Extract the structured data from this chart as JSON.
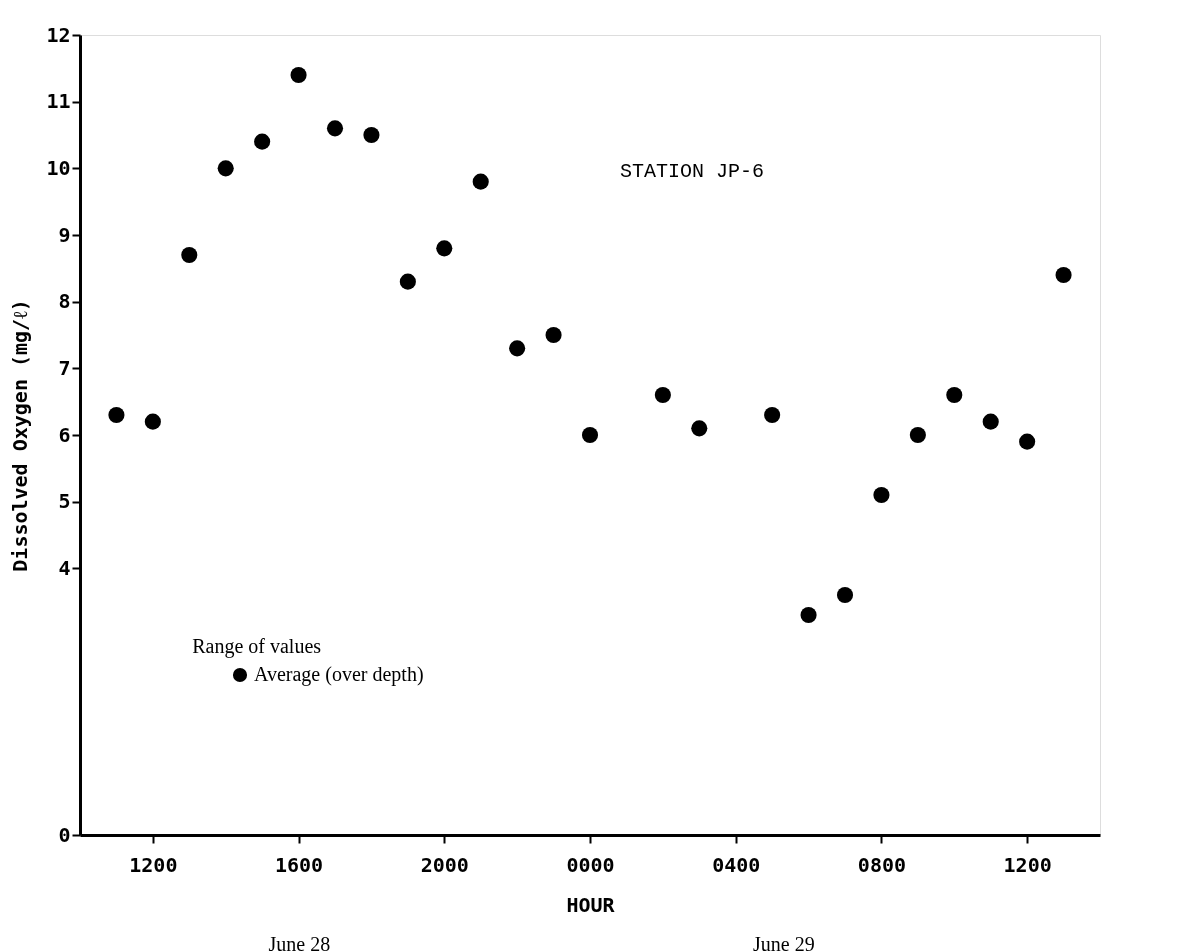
{
  "chart_data": {
    "type": "scatter",
    "xlabel": "HOUR",
    "ylabel": "Dissolved Oxygen (mg/ℓ)",
    "categories": [
      null,
      "1200",
      null,
      null,
      null,
      "1600",
      null,
      null,
      null,
      "2000",
      null,
      null,
      null,
      "0000",
      null,
      null,
      null,
      "0400",
      null,
      null,
      null,
      "0800",
      null,
      null,
      null,
      "1200",
      null
    ],
    "series": [
      {
        "name": "Average (over depth)",
        "color": "#000000",
        "values": [
          6.3,
          6.2,
          8.7,
          10.0,
          10.4,
          11.4,
          10.6,
          10.5,
          8.3,
          8.8,
          9.8,
          7.3,
          7.5,
          6.0,
          null,
          6.6,
          6.1,
          null,
          6.3,
          3.3,
          3.6,
          5.1,
          6.0,
          6.6,
          6.2,
          5.9,
          8.4
        ]
      }
    ],
    "ylim": [
      0,
      12
    ],
    "yticks": [
      0,
      4,
      5,
      6,
      7,
      8,
      9,
      10,
      11,
      12
    ],
    "annotations": [
      "STATION JP-6",
      "Range of values",
      "June 28",
      "June 29"
    ],
    "marker": "circle",
    "grid": false,
    "legend": "bottom left"
  }
}
